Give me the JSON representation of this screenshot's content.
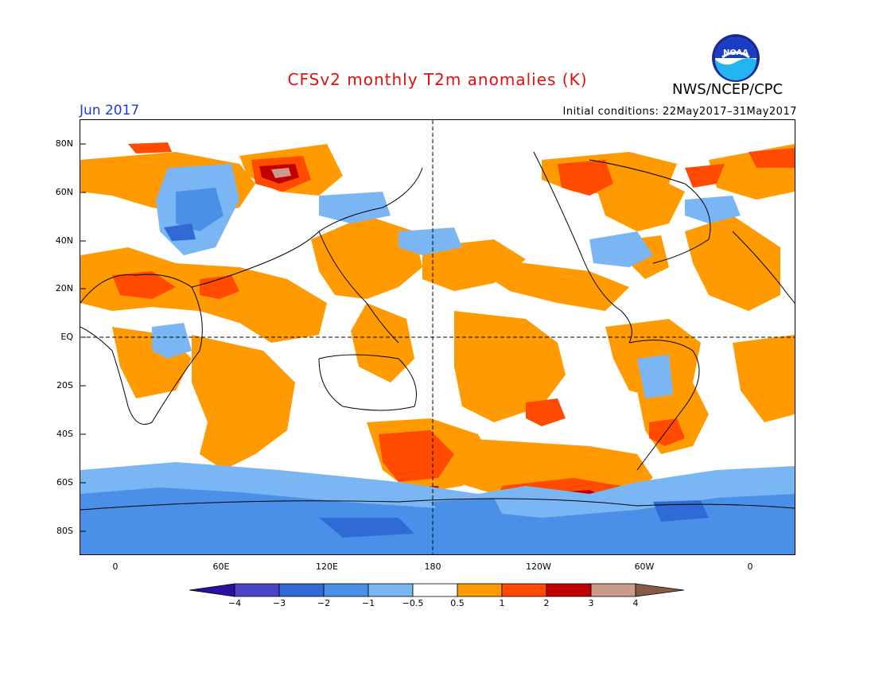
{
  "title": "CFSv2 monthly T2m anomalies (K)",
  "month_label": "Jun 2017",
  "initial_conditions": "Initial conditions: 22May2017–31May2017",
  "agency": "NWS/NCEP/CPC",
  "logo_text": "NOAA",
  "map": {
    "lat_labels": [
      "80N",
      "60N",
      "40N",
      "20N",
      "EQ",
      "20S",
      "40S",
      "60S",
      "80S"
    ],
    "lon_labels": [
      "0",
      "60E",
      "120E",
      "180",
      "120W",
      "60W",
      "0"
    ],
    "projection": "cylindrical equidistant, centered 180",
    "reference_lines": [
      "equator",
      "date line"
    ]
  },
  "colorbar": {
    "ticks": [
      "−4",
      "−3",
      "−2",
      "−1",
      "−0.5",
      "0.5",
      "1",
      "2",
      "3",
      "4"
    ],
    "colors": [
      "#2a0fa0",
      "#4a45c8",
      "#2f6ad6",
      "#4a90e8",
      "#7ab6f3",
      "#ffffff",
      "#ff9a00",
      "#ff4a00",
      "#c00000",
      "#cc9a8a",
      "#8a5a48"
    ]
  },
  "colors": {
    "title": "#e01010",
    "month": "#1a3fd0",
    "warm_05_1": "#ff9a00",
    "warm_1_2": "#ff4a00",
    "warm_2_3": "#c00000",
    "warm_3_4": "#cc9a8a",
    "warm_gt4": "#8a5a48",
    "cool_05_1": "#7ab6f3",
    "cool_1_2": "#4a90e8",
    "cool_2_3": "#2f6ad6"
  }
}
